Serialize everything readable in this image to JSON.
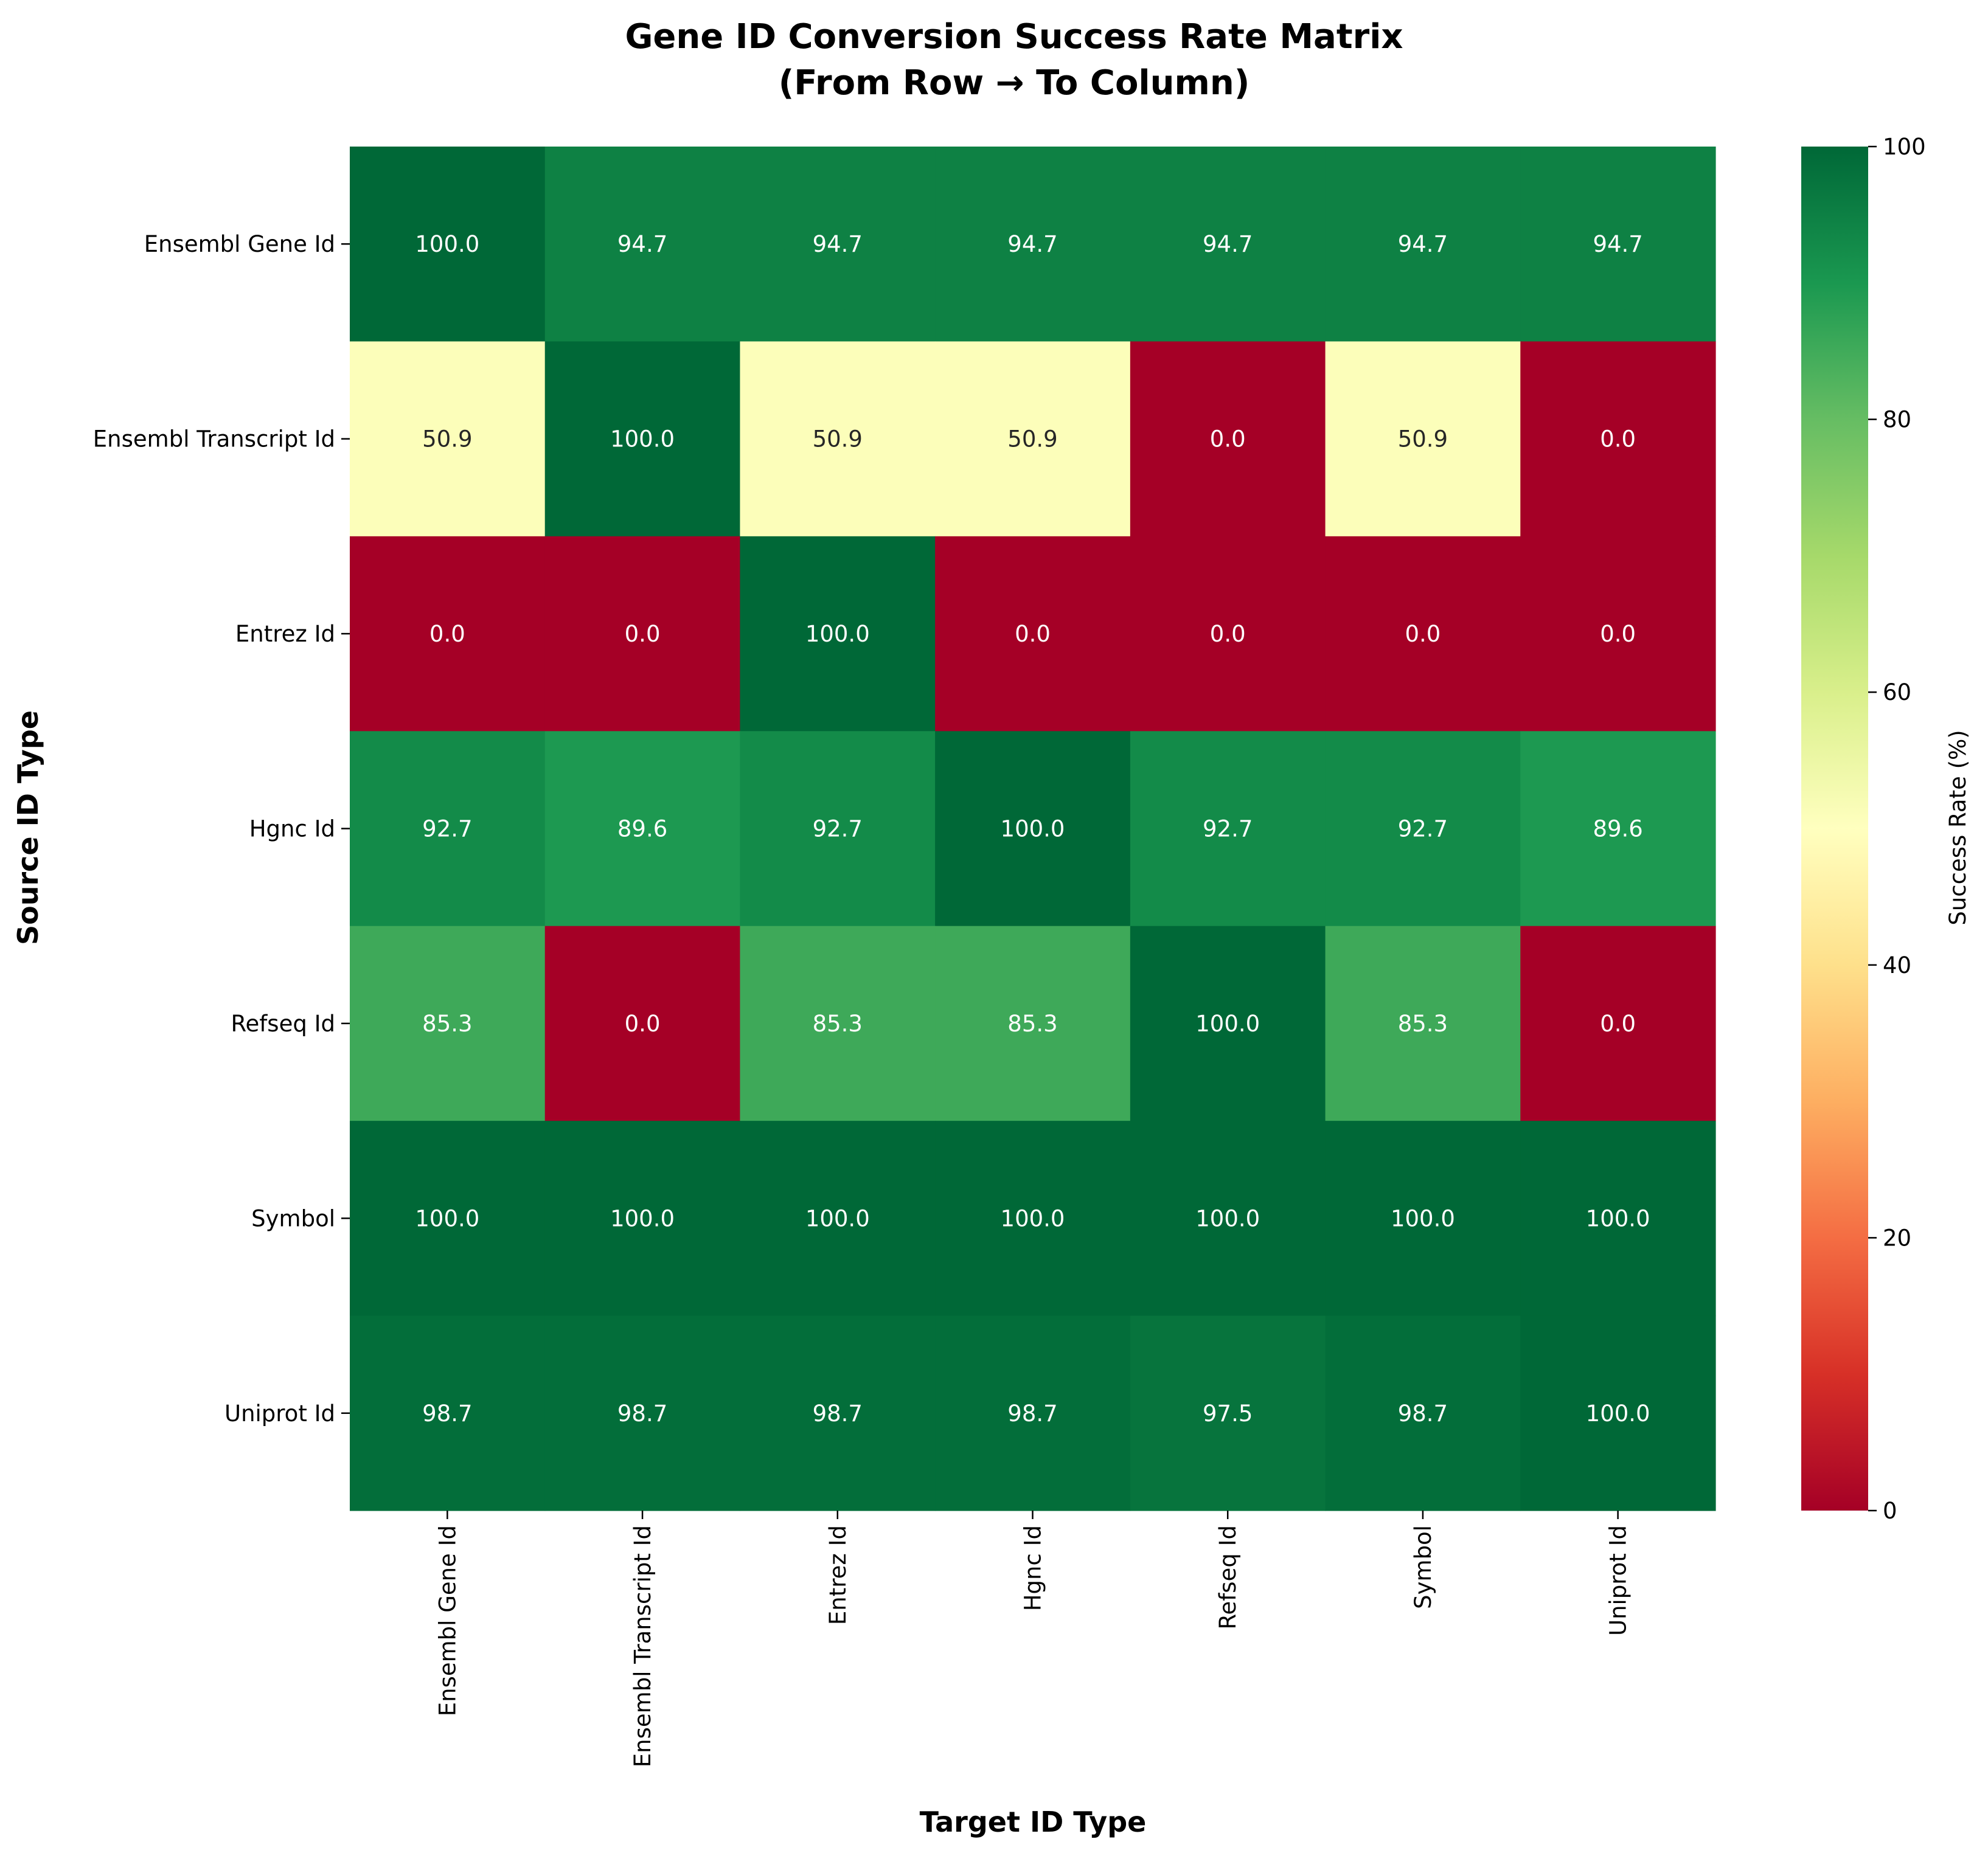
{
  "chart_data": {
    "type": "heatmap",
    "title": [
      "Gene ID Conversion Success Rate Matrix",
      "(From Row → To Column)"
    ],
    "xlabel": "Target ID Type",
    "ylabel": "Source ID Type",
    "rows": [
      "Ensembl Gene Id",
      "Ensembl Transcript Id",
      "Entrez Id",
      "Hgnc Id",
      "Refseq Id",
      "Symbol",
      "Uniprot Id"
    ],
    "columns": [
      "Ensembl Gene Id",
      "Ensembl Transcript Id",
      "Entrez Id",
      "Hgnc Id",
      "Refseq Id",
      "Symbol",
      "Uniprot Id"
    ],
    "values": [
      [
        100.0,
        94.7,
        94.7,
        94.7,
        94.7,
        94.7,
        94.7
      ],
      [
        50.9,
        100.0,
        50.9,
        50.9,
        0.0,
        50.9,
        0.0
      ],
      [
        0.0,
        0.0,
        100.0,
        0.0,
        0.0,
        0.0,
        0.0
      ],
      [
        92.7,
        89.6,
        92.7,
        100.0,
        92.7,
        92.7,
        89.6
      ],
      [
        85.3,
        0.0,
        85.3,
        85.3,
        100.0,
        85.3,
        0.0
      ],
      [
        100.0,
        100.0,
        100.0,
        100.0,
        100.0,
        100.0,
        100.0
      ],
      [
        98.7,
        98.7,
        98.7,
        98.7,
        97.5,
        98.7,
        100.0
      ]
    ],
    "value_format": "1 decimal",
    "colormap": "RdYlGn",
    "colorbar": {
      "label": "Success Rate (%)",
      "range": [
        0,
        100
      ],
      "ticks": [
        0,
        20,
        40,
        60,
        80,
        100
      ],
      "placement": "right"
    },
    "grid": false
  }
}
